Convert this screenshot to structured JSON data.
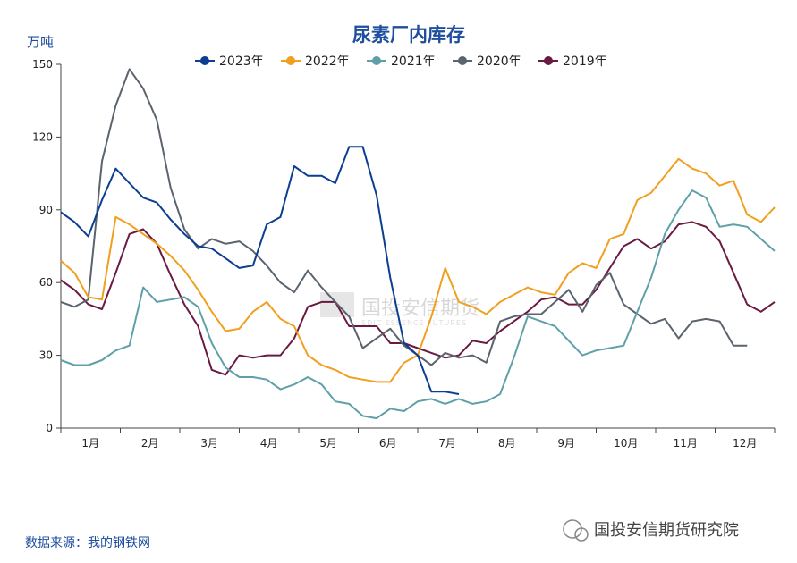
{
  "chart_data": {
    "type": "line",
    "title": "尿素厂内库存",
    "ylabel": "万吨",
    "ylim": [
      0,
      150
    ],
    "yticks": [
      0,
      30,
      60,
      90,
      120,
      150
    ],
    "xlim": [
      1,
      53
    ],
    "month_labels": [
      "1月",
      "2月",
      "3月",
      "4月",
      "5月",
      "6月",
      "7月",
      "8月",
      "9月",
      "10月",
      "11月",
      "12月"
    ],
    "grid": false,
    "legend_position": "top",
    "series": [
      {
        "name": "2023年",
        "color": "#0b3d91",
        "values": [
          89,
          85,
          79,
          94,
          107,
          101,
          95,
          93,
          86,
          80,
          75,
          74,
          70,
          66,
          67,
          84,
          87,
          108,
          104,
          104,
          101,
          116,
          116,
          96,
          62,
          35,
          30,
          15,
          15,
          14
        ]
      },
      {
        "name": "2022年",
        "color": "#f0a01e",
        "values": [
          69,
          64,
          54,
          53,
          87,
          84,
          80,
          76,
          71,
          65,
          57,
          48,
          40,
          41,
          48,
          52,
          45,
          42,
          30,
          26,
          24,
          21,
          20,
          19,
          19,
          27,
          30,
          46,
          66,
          52,
          50,
          47,
          52,
          55,
          58,
          56,
          55,
          64,
          68,
          66,
          78,
          80,
          94,
          97,
          104,
          111,
          107,
          105,
          100,
          102,
          88,
          85,
          91
        ]
      },
      {
        "name": "2021年",
        "color": "#5fa0a8",
        "values": [
          28,
          26,
          26,
          28,
          32,
          34,
          58,
          52,
          53,
          54,
          50,
          35,
          25,
          21,
          21,
          20,
          16,
          18,
          21,
          18,
          11,
          10,
          5,
          4,
          8,
          7,
          11,
          12,
          10,
          12,
          10,
          11,
          14,
          29,
          46,
          44,
          42,
          36,
          30,
          32,
          33,
          34,
          48,
          62,
          80,
          90,
          98,
          95,
          83,
          84,
          83,
          78,
          73
        ]
      },
      {
        "name": "2020年",
        "color": "#5a636e",
        "values": [
          52,
          50,
          53,
          110,
          133,
          148,
          140,
          127,
          99,
          82,
          74,
          78,
          76,
          77,
          73,
          67,
          60,
          56,
          65,
          58,
          52,
          46,
          33,
          37,
          41,
          34,
          30,
          26,
          31,
          29,
          30,
          27,
          44,
          46,
          47,
          47,
          52,
          57,
          48,
          59,
          64,
          51,
          47,
          43,
          45,
          37,
          44,
          45,
          44,
          34,
          34
        ]
      },
      {
        "name": "2019年",
        "color": "#6a1a42",
        "values": [
          61,
          57,
          51,
          49,
          64,
          80,
          82,
          76,
          63,
          51,
          42,
          24,
          22,
          30,
          29,
          30,
          30,
          37,
          50,
          52,
          52,
          42,
          42,
          42,
          35,
          35,
          33,
          31,
          29,
          30,
          36,
          35,
          40,
          44,
          48,
          53,
          54,
          51,
          51,
          57,
          66,
          75,
          78,
          74,
          77,
          84,
          85,
          83,
          77,
          64,
          51,
          48,
          52
        ]
      }
    ],
    "source": "数据来源：我的钢铁网",
    "brand": "国投安信期货研究院",
    "watermark": "国投安信期货",
    "watermark_sub": "SDIC ESSENCE FUTURES"
  }
}
